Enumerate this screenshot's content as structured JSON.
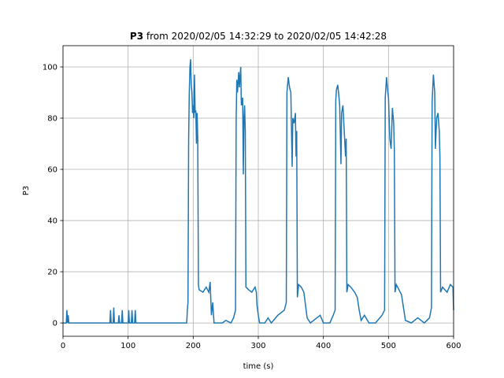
{
  "chart_data": {
    "type": "line",
    "title_bold": "P3",
    "title": "from 2020/02/05 14:32:29 to 2020/02/05 14:42:28",
    "xlabel": "time (s)",
    "ylabel": "P3",
    "xlim": [
      0,
      600
    ],
    "xticks": [
      0,
      100,
      200,
      300,
      400,
      500,
      600
    ],
    "ylim": [
      -5.2,
      108.3
    ],
    "yticks": [
      0,
      20,
      40,
      60,
      80,
      100
    ],
    "grid": true,
    "series": [
      {
        "name": "P3",
        "color": "#1f77b4",
        "x": [
          0,
          5,
          6,
          7,
          8,
          9,
          72,
          73,
          74,
          77,
          78,
          79,
          85,
          86,
          87,
          90,
          91,
          92,
          100,
          101,
          102,
          105,
          106,
          107,
          110,
          111,
          112,
          190,
          191,
          192,
          193,
          194,
          195,
          196,
          197,
          198,
          199,
          200,
          201,
          202,
          203,
          204,
          205,
          206,
          207,
          208,
          209,
          215,
          220,
          224,
          226,
          228,
          230,
          232,
          245,
          250,
          258,
          262,
          265,
          266,
          267,
          268,
          270,
          271,
          273,
          274,
          276,
          277,
          278,
          279,
          280,
          281,
          285,
          290,
          295,
          297,
          298,
          300,
          302,
          310,
          315,
          320,
          330,
          340,
          343,
          344,
          345,
          346,
          348,
          350,
          351,
          352,
          353,
          355,
          357,
          358,
          359,
          360,
          362,
          366,
          370,
          373,
          375,
          380,
          395,
          400,
          410,
          415,
          418,
          419,
          420,
          422,
          424,
          425,
          427,
          428,
          430,
          432,
          434,
          435,
          436,
          438,
          442,
          448,
          452,
          455,
          458,
          463,
          470,
          480,
          490,
          494,
          495,
          496,
          497,
          499,
          500,
          502,
          504,
          506,
          508,
          509,
          510,
          512,
          516,
          520,
          523,
          526,
          535,
          545,
          555,
          563,
          566,
          567,
          568,
          569,
          571,
          572,
          574,
          576,
          578,
          579,
          580,
          583,
          590,
          595,
          599,
          600
        ],
        "values": [
          0,
          0,
          5,
          0,
          3,
          0,
          0,
          5,
          0,
          0,
          6,
          0,
          0,
          3,
          0,
          0,
          5,
          0,
          0,
          5,
          0,
          0,
          5,
          0,
          0,
          5,
          0,
          0,
          5,
          8,
          72,
          90,
          100,
          103,
          93,
          90,
          82,
          85,
          80,
          97,
          82,
          83,
          70,
          82,
          72,
          15,
          13,
          12,
          14,
          12,
          16,
          3,
          8,
          0,
          0,
          1,
          0,
          2,
          5,
          80,
          95,
          90,
          98,
          92,
          100,
          85,
          88,
          58,
          80,
          85,
          75,
          14,
          13,
          12,
          14,
          12,
          7,
          3,
          0,
          0,
          2,
          0,
          3,
          5,
          8,
          90,
          93,
          96,
          92,
          90,
          75,
          61,
          80,
          78,
          82,
          65,
          75,
          10,
          15,
          14,
          12,
          6,
          2,
          0,
          3,
          0,
          0,
          3,
          5,
          87,
          91,
          93,
          88,
          85,
          62,
          82,
          85,
          75,
          65,
          72,
          12,
          15,
          14,
          12,
          10,
          5,
          1,
          3,
          0,
          0,
          3,
          5,
          88,
          92,
          96,
          90,
          88,
          72,
          68,
          84,
          78,
          67,
          12,
          15,
          13,
          11,
          6,
          1,
          0,
          2,
          0,
          2,
          6,
          86,
          92,
          97,
          90,
          68,
          80,
          82,
          75,
          65,
          12,
          14,
          12,
          15,
          14,
          5
        ]
      }
    ]
  }
}
